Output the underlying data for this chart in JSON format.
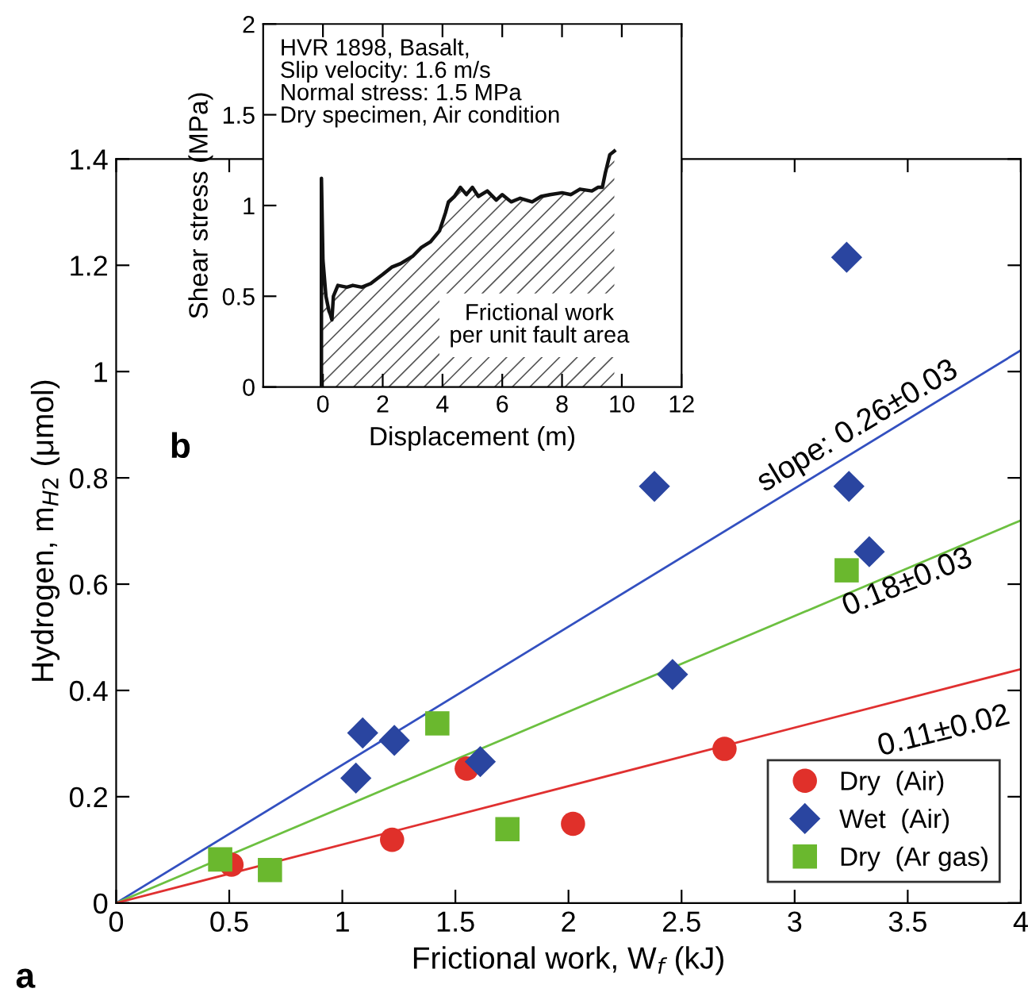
{
  "chart_data": [
    {
      "type": "scatter",
      "xlabel": "Frictional work, W$_{f}$ (kJ)",
      "ylabel": "Hydrogen, m$_{H2}$ (μmol)",
      "xlim": [
        0,
        4
      ],
      "ylim": [
        0,
        1.4
      ],
      "xticks": [
        0,
        0.5,
        1,
        1.5,
        2,
        2.5,
        3,
        3.5,
        4
      ],
      "yticks": [
        0,
        0.2,
        0.4,
        0.6,
        0.8,
        1,
        1.2,
        1.4
      ],
      "grid": false,
      "legend": "bottom right",
      "series": [
        {
          "type": "line",
          "color": "#3350c0",
          "x": [
            0,
            4
          ],
          "values": [
            0,
            1.04
          ],
          "marker": "none"
        },
        {
          "type": "line",
          "color": "#6cc040",
          "x": [
            0,
            4
          ],
          "values": [
            0,
            0.72
          ],
          "marker": "none"
        },
        {
          "type": "line",
          "color": "#e03030",
          "x": [
            0,
            4
          ],
          "values": [
            0,
            0.44
          ],
          "marker": "none"
        },
        {
          "name": "Dry  (Air)",
          "color": "#e0302a",
          "marker": "circle",
          "x": [
            0.51,
            1.22,
            1.55,
            2.02,
            2.69
          ],
          "values": [
            0.072,
            0.119,
            0.253,
            0.149,
            0.29
          ]
        },
        {
          "name": "Wet  (Air)",
          "color": "#2a45a0",
          "marker": "diamond",
          "x": [
            1.06,
            1.09,
            1.23,
            1.61,
            2.38,
            2.46,
            3.23,
            3.24,
            3.33
          ],
          "values": [
            0.235,
            0.32,
            0.306,
            0.266,
            0.784,
            0.43,
            1.215,
            0.784,
            0.661
          ]
        },
        {
          "name": "Dry  (Ar gas)",
          "color": "#6ab82e",
          "marker": "square",
          "x": [
            0.46,
            0.68,
            1.42,
            1.73,
            3.23
          ],
          "values": [
            0.082,
            0.062,
            0.338,
            0.139,
            0.626
          ]
        }
      ],
      "annotations": [
        "slope: 0.26±0.03",
        "0.18±0.03",
        "0.11±0.02",
        "a"
      ]
    },
    {
      "type": "area",
      "xlabel": "Displacement (m)",
      "ylabel": "Shear stress (MPa)",
      "xlim": [
        -2,
        12
      ],
      "ylim": [
        0,
        2
      ],
      "xticks": [
        0,
        2,
        4,
        6,
        8,
        10,
        12
      ],
      "yticks": [
        0,
        0.5,
        1,
        1.5,
        2
      ],
      "grid": false,
      "series": [
        {
          "color": "#111111",
          "x": [
            -0.05,
            -0.05,
            0.0,
            0.1,
            0.2,
            0.25,
            0.3,
            0.35,
            0.5,
            0.8,
            1.0,
            1.3,
            1.6,
            2.0,
            2.3,
            2.6,
            3.0,
            3.3,
            3.6,
            3.9,
            4.1,
            4.2,
            4.4,
            4.6,
            4.8,
            5.0,
            5.2,
            5.5,
            5.8,
            6.0,
            6.3,
            6.6,
            7.0,
            7.3,
            7.6,
            8.0,
            8.3,
            8.6,
            9.0,
            9.2,
            9.35,
            9.45,
            9.6,
            9.75
          ],
          "values": [
            0,
            1.15,
            0.7,
            0.5,
            0.42,
            0.4,
            0.37,
            0.5,
            0.56,
            0.55,
            0.56,
            0.55,
            0.57,
            0.62,
            0.66,
            0.68,
            0.72,
            0.77,
            0.8,
            0.86,
            0.96,
            1.02,
            1.05,
            1.1,
            1.06,
            1.1,
            1.05,
            1.08,
            1.03,
            1.06,
            1.02,
            1.04,
            1.02,
            1.05,
            1.06,
            1.07,
            1.06,
            1.09,
            1.08,
            1.1,
            1.1,
            1.18,
            1.28,
            1.3
          ]
        }
      ],
      "annotations": [
        "HVR 1898, Basalt,\nSlip velocity: 1.6 m/s\nNormal stress: 1.5 MPa\nDry specimen, Air condition",
        "Frictional work\nper unit fault area",
        "b"
      ]
    }
  ]
}
